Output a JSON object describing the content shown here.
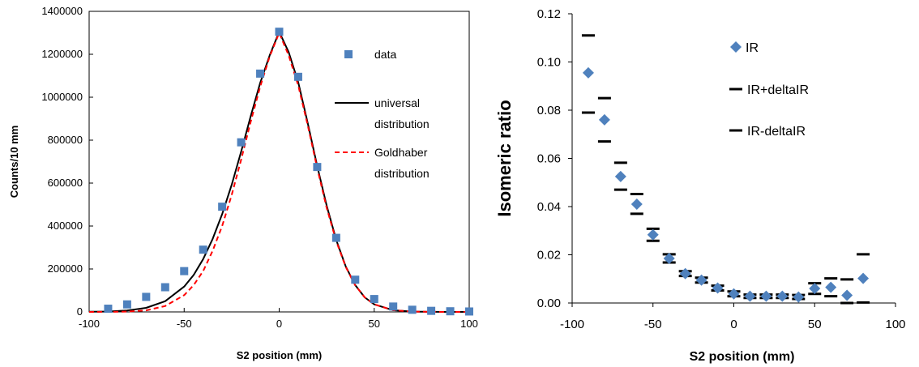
{
  "chart_data": [
    {
      "type": "scatter",
      "xlabel": "S2 position (mm)",
      "ylabel": "Counts/10 mm",
      "xlim": [
        -100,
        100
      ],
      "ylim": [
        0,
        1400000
      ],
      "xticks": [
        "-100",
        "-50",
        "0",
        "50",
        "100"
      ],
      "yticks": [
        "0",
        "200000",
        "400000",
        "600000",
        "800000",
        "1000000",
        "1200000",
        "1400000"
      ],
      "grid": false,
      "legend_position": "top-right",
      "series": [
        {
          "name": "data",
          "kind": "markers",
          "marker": "square",
          "color": "#4f81bd",
          "x": [
            -90,
            -80,
            -70,
            -60,
            -50,
            -40,
            -30,
            -20,
            -10,
            0,
            10,
            20,
            30,
            40,
            50,
            60,
            70,
            80,
            90,
            100
          ],
          "y": [
            15000,
            35000,
            70000,
            115000,
            190000,
            290000,
            490000,
            790000,
            1110000,
            1305000,
            1095000,
            675000,
            345000,
            150000,
            60000,
            25000,
            10000,
            5000,
            3000,
            2000
          ]
        },
        {
          "name": "universal distribution",
          "kind": "line",
          "color": "#000000",
          "x": [
            -100,
            -90,
            -80,
            -70,
            -60,
            -50,
            -45,
            -40,
            -35,
            -30,
            -25,
            -20,
            -15,
            -10,
            -5,
            0,
            5,
            10,
            15,
            20,
            25,
            30,
            35,
            40,
            45,
            50,
            60,
            70,
            80,
            90,
            100
          ],
          "y": [
            600,
            2000,
            6500,
            19000,
            50000,
            118000,
            172000,
            246000,
            340000,
            455000,
            592000,
            747000,
            911000,
            1067000,
            1195000,
            1305000,
            1210000,
            1070000,
            880000,
            680000,
            495000,
            335000,
            212000,
            125000,
            68000,
            35000,
            8000,
            1600,
            300,
            50,
            10
          ]
        },
        {
          "name": "Goldhaber distribution",
          "kind": "line",
          "dash": "dashed",
          "color": "#ff0000",
          "x": [
            -100,
            -90,
            -80,
            -70,
            -60,
            -50,
            -45,
            -40,
            -35,
            -30,
            -25,
            -20,
            -15,
            -10,
            -5,
            0,
            5,
            10,
            15,
            20,
            25,
            30,
            35,
            40,
            45,
            50,
            60,
            70,
            80,
            90,
            100
          ],
          "y": [
            20,
            200,
            1500,
            7000,
            27000,
            78000,
            125000,
            190000,
            285000,
            400000,
            545000,
            710000,
            885000,
            1050000,
            1190000,
            1300000,
            1195000,
            1055000,
            870000,
            670000,
            485000,
            330000,
            210000,
            124000,
            68000,
            35000,
            8000,
            1500,
            250,
            30,
            5
          ]
        }
      ],
      "legend_labels": [
        {
          "lines": [
            "data"
          ]
        },
        {
          "lines": [
            "universal",
            "distribution"
          ]
        },
        {
          "lines": [
            "Goldhaber",
            "distribution"
          ]
        }
      ]
    },
    {
      "type": "scatter",
      "xlabel": "S2 position (mm)",
      "ylabel": "Isomeric ratio",
      "xlim": [
        -100,
        100
      ],
      "ylim": [
        0,
        0.12
      ],
      "xticks": [
        "-100",
        "-50",
        "0",
        "50",
        "100"
      ],
      "yticks": [
        "0.00",
        "0.02",
        "0.04",
        "0.06",
        "0.08",
        "0.10",
        "0.12"
      ],
      "grid": false,
      "legend_position": "top-right",
      "series": [
        {
          "name": "IR",
          "marker": "diamond",
          "color": "#4f81bd",
          "x": [
            -90,
            -80,
            -70,
            -60,
            -50,
            -40,
            -30,
            -20,
            -10,
            0,
            10,
            20,
            30,
            40,
            50,
            60,
            70,
            80
          ],
          "y": [
            0.0955,
            0.076,
            0.0525,
            0.041,
            0.0283,
            0.0185,
            0.0122,
            0.0095,
            0.0062,
            0.0038,
            0.0028,
            0.0028,
            0.0028,
            0.0025,
            0.006,
            0.0065,
            0.0032,
            0.0102
          ]
        },
        {
          "name": "IR+deltaIR",
          "marker": "dash",
          "color": "#000000",
          "x": [
            -90,
            -80,
            -70,
            -60,
            -50,
            -40,
            -30,
            -20,
            -10,
            0,
            10,
            20,
            30,
            40,
            50,
            60,
            70,
            80
          ],
          "y": [
            0.111,
            0.085,
            0.0582,
            0.0452,
            0.0308,
            0.0202,
            0.0132,
            0.0105,
            0.0072,
            0.0048,
            0.0035,
            0.0035,
            0.0035,
            0.0033,
            0.0082,
            0.0102,
            0.0098,
            0.0202
          ]
        },
        {
          "name": "IR-deltaIR",
          "marker": "dash",
          "color": "#000000",
          "x": [
            -90,
            -80,
            -70,
            -60,
            -50,
            -40,
            -30,
            -20,
            -10,
            0,
            10,
            20,
            30,
            40,
            50,
            60,
            70,
            80
          ],
          "y": [
            0.079,
            0.067,
            0.047,
            0.037,
            0.0258,
            0.0168,
            0.0112,
            0.0085,
            0.0052,
            0.0028,
            0.0021,
            0.0021,
            0.0021,
            0.0017,
            0.0038,
            0.0028,
            0.0,
            0.0002
          ]
        }
      ]
    }
  ]
}
